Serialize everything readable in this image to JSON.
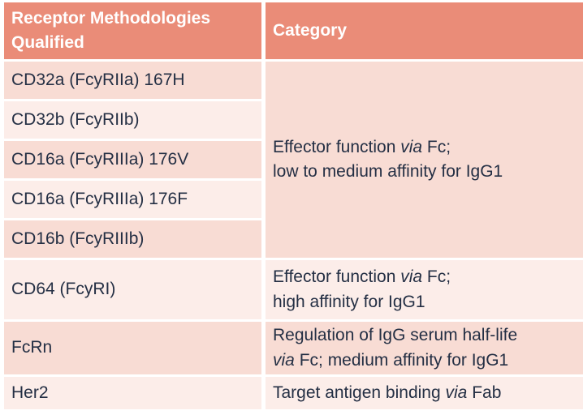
{
  "colors": {
    "page-bg": "#FFFFFF",
    "header-bg": "#EA8C78",
    "header-text": "#FFFFFF",
    "row-dark": "#F8DCD4",
    "row-light": "#FCEDE9",
    "body-text": "#242F44"
  },
  "header": {
    "receptor": [
      {
        "t": "Receptor Methodologies"
      },
      {
        "br": true
      },
      {
        "t": "Qualified"
      }
    ],
    "category": "Category"
  },
  "rows": [
    {
      "label": "CD32a (FcyRIIa) 167H"
    },
    {
      "label": "CD32b (FcyRIIb)"
    },
    {
      "label": "CD16a (FcyRIIIa) 176V"
    },
    {
      "label": "CD16a (FcyRIIIa) 176F"
    },
    {
      "label": "CD16b (FcyRIIIb)"
    },
    {
      "label": "CD64 (FcyRI)"
    },
    {
      "label": "FcRn"
    },
    {
      "label": "Her2"
    }
  ],
  "categories": [
    {
      "segments": [
        {
          "t": "Effector function "
        },
        {
          "t": "via",
          "i": true
        },
        {
          "t": " Fc;"
        },
        {
          "br": true
        },
        {
          "t": "low to medium affinity for IgG1"
        }
      ]
    },
    {
      "segments": [
        {
          "t": "Effector function "
        },
        {
          "t": "via",
          "i": true
        },
        {
          "t": " Fc;"
        },
        {
          "br": true
        },
        {
          "t": "high affinity for IgG1"
        }
      ]
    },
    {
      "segments": [
        {
          "t": "Regulation of IgG serum half-life"
        },
        {
          "br": true
        },
        {
          "t": "via",
          "i": true
        },
        {
          "t": " Fc; medium affinity for IgG1"
        }
      ]
    },
    {
      "segments": [
        {
          "t": "Target antigen binding "
        },
        {
          "t": "via",
          "i": true
        },
        {
          "t": " Fab"
        }
      ]
    }
  ]
}
